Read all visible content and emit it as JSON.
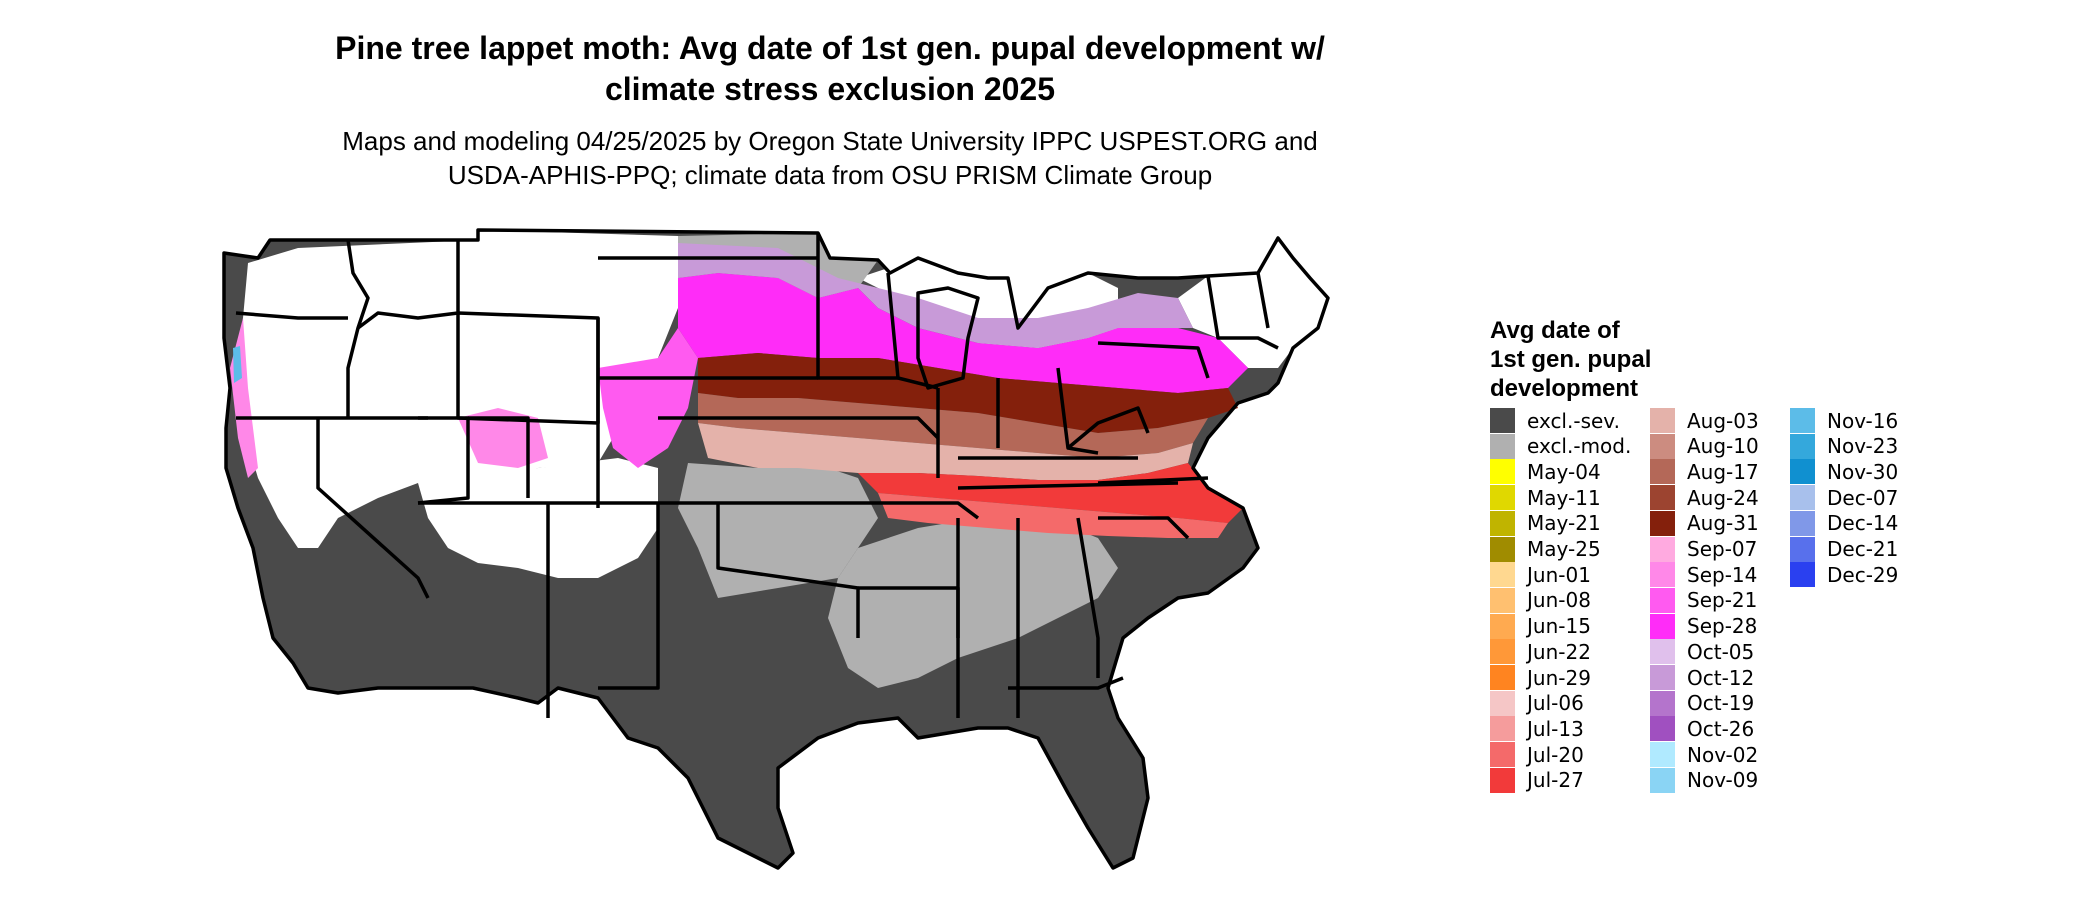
{
  "title_line1": "Pine tree lappet moth: Avg date of 1st gen. pupal development w/",
  "title_line2": "climate stress exclusion 2025",
  "subtitle_line1": "Maps and modeling 04/25/2025 by Oregon State University IPPC USPEST.ORG and",
  "subtitle_line2": "USDA-APHIS-PPQ; climate data from OSU PRISM Climate Group",
  "legend": {
    "title_lines": [
      "Avg date of",
      "1st gen. pupal",
      "development"
    ],
    "items": [
      {
        "label": "excl.-sev.",
        "color": "#4a4a4a"
      },
      {
        "label": "excl.-mod.",
        "color": "#b0b0b0"
      },
      {
        "label": "May-04",
        "color": "#ffff00"
      },
      {
        "label": "May-11",
        "color": "#e0d800"
      },
      {
        "label": "May-21",
        "color": "#c0b400"
      },
      {
        "label": "May-25",
        "color": "#a08c00"
      },
      {
        "label": "Jun-01",
        "color": "#ffd890"
      },
      {
        "label": "Jun-08",
        "color": "#ffc070"
      },
      {
        "label": "Jun-15",
        "color": "#ffaa50"
      },
      {
        "label": "Jun-22",
        "color": "#ff9838"
      },
      {
        "label": "Jun-29",
        "color": "#ff8420"
      },
      {
        "label": "Jul-06",
        "color": "#f5c6c6"
      },
      {
        "label": "Jul-13",
        "color": "#f59c9c"
      },
      {
        "label": "Jul-20",
        "color": "#f46a6a"
      },
      {
        "label": "Jul-27",
        "color": "#f23a3a"
      },
      {
        "label": "Aug-03",
        "color": "#e4b2aa"
      },
      {
        "label": "Aug-10",
        "color": "#cc8c80"
      },
      {
        "label": "Aug-17",
        "color": "#b46858"
      },
      {
        "label": "Aug-24",
        "color": "#9c4430"
      },
      {
        "label": "Aug-31",
        "color": "#84200c"
      },
      {
        "label": "Sep-07",
        "color": "#ffaae0"
      },
      {
        "label": "Sep-14",
        "color": "#ff88e8"
      },
      {
        "label": "Sep-21",
        "color": "#ff5af0"
      },
      {
        "label": "Sep-28",
        "color": "#ff2cf8"
      },
      {
        "label": "Oct-05",
        "color": "#e0c0ec"
      },
      {
        "label": "Oct-12",
        "color": "#c89ad8"
      },
      {
        "label": "Oct-19",
        "color": "#b474cc"
      },
      {
        "label": "Oct-26",
        "color": "#a050c0"
      },
      {
        "label": "Nov-02",
        "color": "#b0eaff"
      },
      {
        "label": "Nov-09",
        "color": "#8ad4f4"
      },
      {
        "label": "Nov-16",
        "color": "#5cbce8"
      },
      {
        "label": "Nov-23",
        "color": "#34a8dc"
      },
      {
        "label": "Nov-30",
        "color": "#1090d0"
      },
      {
        "label": "Dec-07",
        "color": "#a8c0ec"
      },
      {
        "label": "Dec-14",
        "color": "#8098e8"
      },
      {
        "label": "Dec-21",
        "color": "#5870ec"
      },
      {
        "label": "Dec-29",
        "color": "#2a40f0"
      }
    ]
  }
}
